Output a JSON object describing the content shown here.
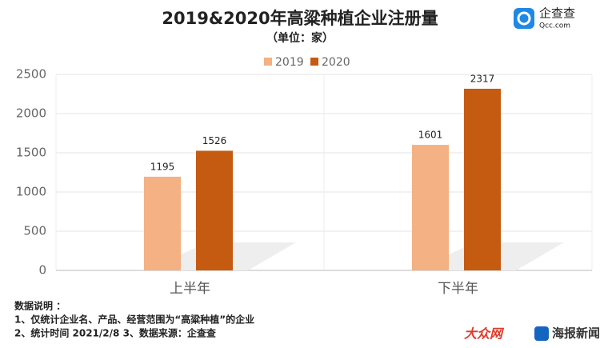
{
  "chart_data": {
    "type": "bar",
    "title": "2019&2020年高粱种植企业注册量",
    "subtitle": "（单位：家）",
    "categories": [
      "上半年",
      "下半年"
    ],
    "series": [
      {
        "name": "2019",
        "color": "#f4b183",
        "values": [
          1195,
          1601
        ]
      },
      {
        "name": "2020",
        "color": "#c55a11",
        "values": [
          1526,
          2317
        ]
      }
    ],
    "ylim": [
      0,
      2500
    ],
    "yticks": [
      0,
      500,
      1000,
      1500,
      2000,
      2500
    ],
    "grid": true,
    "legend": "top"
  },
  "notes": [
    "数据说明 ：",
    "1、仅统计企业名、产品、经营范围为“高粱种植”的企业",
    "2、统计时间 2021/2/8   3、数据来源：企查查"
  ],
  "logos": {
    "qcc": "企查查",
    "qcc_url": "Qcc.com",
    "dazhong": "大众网",
    "haibao": "海报新闻"
  }
}
